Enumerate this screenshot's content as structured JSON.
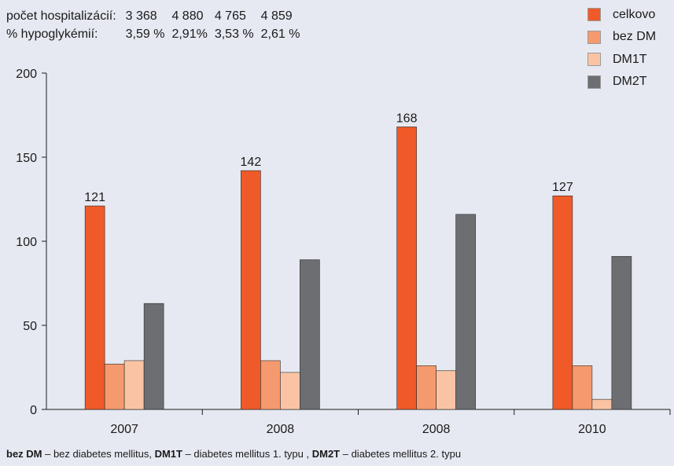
{
  "stats": {
    "hospitalizations": {
      "label": "počet hospitalizácií:",
      "values": [
        "3 368",
        "4 880",
        "4 765",
        "4 859"
      ]
    },
    "hypoglycemia": {
      "label": "% hypoglykémií:",
      "values": [
        "3,59 %",
        "2,91%",
        "3,53 %",
        "2,61 %"
      ]
    }
  },
  "footnote": {
    "parts": [
      {
        "text": "bez DM",
        "bold": true
      },
      {
        "text": " – bez diabetes mellitus, ",
        "bold": false
      },
      {
        "text": "DM1T",
        "bold": true
      },
      {
        "text": " – diabetes mellitus 1. typu , ",
        "bold": false
      },
      {
        "text": "DM2T",
        "bold": true
      },
      {
        "text": " – diabetes mellitus 2. typu",
        "bold": false
      }
    ]
  },
  "chart_data": {
    "type": "bar",
    "title": "",
    "xlabel": "",
    "ylabel": "",
    "ylim": [
      0,
      200
    ],
    "yticks": [
      0,
      50,
      100,
      150,
      200
    ],
    "grid": false,
    "legend_position": "top-right",
    "categories": [
      "2007",
      "2008",
      "2008",
      "2010"
    ],
    "series": [
      {
        "name": "celkovo",
        "color": "#f05a28",
        "values": [
          121,
          142,
          168,
          127
        ],
        "labels": [
          121,
          142,
          168,
          127
        ]
      },
      {
        "name": "bez DM",
        "color": "#f59a6e",
        "values": [
          27,
          29,
          26,
          26
        ]
      },
      {
        "name": "DM1T",
        "color": "#fac4a4",
        "values": [
          29,
          22,
          23,
          6
        ]
      },
      {
        "name": "DM2T",
        "color": "#6d6e71",
        "values": [
          63,
          89,
          116,
          91
        ]
      }
    ]
  }
}
